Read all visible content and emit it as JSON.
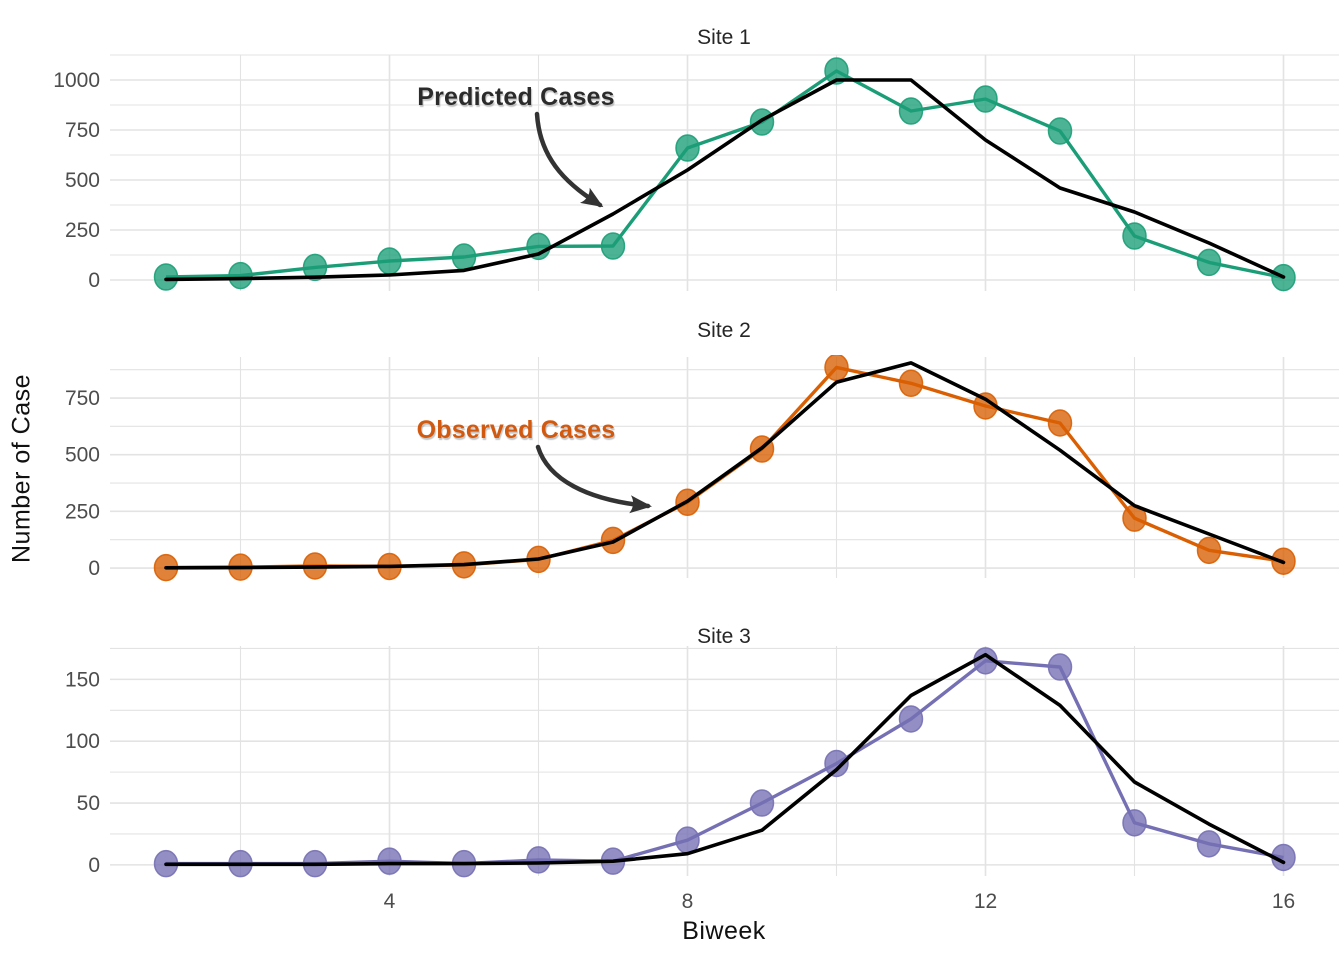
{
  "figure": {
    "x_axis_title": "Biweek",
    "y_axis_title": "Number of Case",
    "x_ticks": [
      4,
      8,
      12,
      16
    ],
    "annotations": {
      "predicted": {
        "label": "Predicted Cases",
        "color": "#2b2b2b",
        "points_to": "black predicted line"
      },
      "observed": {
        "label": "Observed Cases",
        "color": "#d25a10",
        "points_to": "colored observed points"
      }
    },
    "styles": {
      "grid_color": "#e3e3e3",
      "tick_text_color": "#4d4d4d",
      "panel_title_color": "#262626",
      "predicted_line_color": "#000000",
      "arrow_color": "#333333"
    }
  },
  "chart_data": [
    {
      "type": "line",
      "title": "Site 1",
      "x": [
        1,
        2,
        3,
        4,
        5,
        6,
        7,
        8,
        9,
        10,
        11,
        12,
        13,
        14,
        15,
        16
      ],
      "xlabel": "Biweek",
      "ylabel": "Number of Case",
      "y_ticks": [
        0,
        250,
        500,
        750,
        1000
      ],
      "ylim": [
        -55,
        1125
      ],
      "grid": true,
      "series": [
        {
          "name": "Observed Cases",
          "color": "#1B9E77",
          "style": "points-and-line",
          "values": [
            15,
            22,
            63,
            95,
            115,
            168,
            170,
            660,
            790,
            1045,
            845,
            905,
            745,
            220,
            88,
            12
          ]
        },
        {
          "name": "Predicted Cases",
          "color": "#000000",
          "style": "line",
          "values": [
            3,
            7,
            14,
            25,
            48,
            130,
            330,
            550,
            800,
            1000,
            1000,
            700,
            460,
            340,
            185,
            15
          ]
        }
      ]
    },
    {
      "type": "line",
      "title": "Site 2",
      "x": [
        1,
        2,
        3,
        4,
        5,
        6,
        7,
        8,
        9,
        10,
        11,
        12,
        13,
        14,
        15,
        16
      ],
      "xlabel": "Biweek",
      "ylabel": "Number of Case",
      "y_ticks": [
        0,
        250,
        500,
        750
      ],
      "ylim": [
        -44,
        931
      ],
      "grid": true,
      "series": [
        {
          "name": "Observed Cases",
          "color": "#D95F02",
          "style": "points-and-line",
          "values": [
            2,
            4,
            9,
            7,
            14,
            38,
            122,
            290,
            525,
            885,
            815,
            715,
            640,
            220,
            78,
            30
          ]
        },
        {
          "name": "Predicted Cases",
          "color": "#000000",
          "style": "line",
          "values": [
            1,
            2,
            4,
            7,
            15,
            40,
            115,
            295,
            530,
            820,
            905,
            745,
            520,
            275,
            150,
            25
          ]
        }
      ]
    },
    {
      "type": "line",
      "title": "Site 3",
      "x": [
        1,
        2,
        3,
        4,
        5,
        6,
        7,
        8,
        9,
        10,
        11,
        12,
        13,
        14,
        15,
        16
      ],
      "xlabel": "Biweek",
      "ylabel": "Number of Case",
      "y_ticks": [
        0,
        50,
        100,
        150
      ],
      "ylim": [
        -9,
        177
      ],
      "grid": true,
      "series": [
        {
          "name": "Observed Cases",
          "color": "#7570B3",
          "style": "points-and-line",
          "values": [
            1,
            1,
            1,
            3,
            1,
            4,
            3,
            20,
            50,
            82,
            118,
            165,
            160,
            34,
            17,
            6
          ]
        },
        {
          "name": "Predicted Cases",
          "color": "#000000",
          "style": "line",
          "values": [
            0.5,
            0.5,
            0.5,
            1,
            1,
            1.5,
            3,
            9,
            28,
            77,
            137,
            170,
            129,
            67,
            33,
            2
          ]
        }
      ]
    }
  ]
}
